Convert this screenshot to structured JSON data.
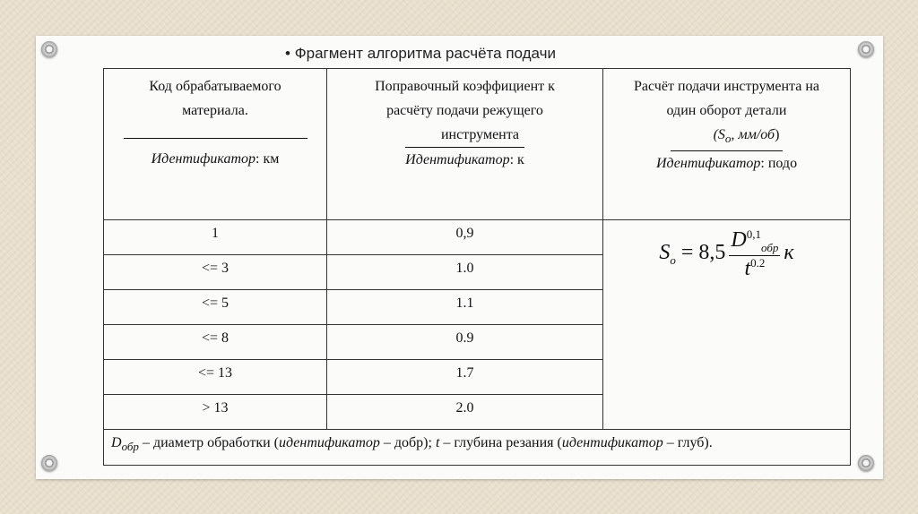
{
  "title": "Фрагмент алгоритма расчёта подачи",
  "headers": [
    {
      "lines": [
        "Код обрабатываемого",
        "материала."
      ],
      "underline": "",
      "id_label": "Идентификатор",
      "id_value": ": км"
    },
    {
      "lines": [
        "Поправочный коэффициент к",
        "расчёту подачи режущего"
      ],
      "underline": "инструмента",
      "id_label": "Идентификатор",
      "id_value": ": к"
    },
    {
      "lines": [
        "Расчёт подачи инструмента на",
        "один оборот детали"
      ],
      "underline": "(So, мм/об)",
      "id_label": "Идентификатор",
      "id_value": ": подо"
    }
  ],
  "rows": [
    {
      "code": "1",
      "coef": "0,9"
    },
    {
      "code": "<= 3",
      "coef": "1.0"
    },
    {
      "code": "<= 5",
      "coef": "1.1"
    },
    {
      "code": "<= 8",
      "coef": "0.9"
    },
    {
      "code": "<= 13",
      "coef": "1.7"
    },
    {
      "code": "> 13",
      "coef": "2.0"
    }
  ],
  "formula": {
    "lhs": "S",
    "lhs_sub": "o",
    "eq": "= 8,5",
    "num": "D",
    "num_sup": "0,1",
    "num_sub": "обр",
    "den": "t",
    "den_sup": "0.2",
    "factor": "к"
  },
  "footnote": {
    "d": "D",
    "d_sub": "обр",
    "t1": " – диаметр обработки (",
    "i1": "идентификатор",
    "t2": " – добр); ",
    "t": "t",
    "t3": " – глубина резания (",
    "i2": "идентификатор",
    "t4": " – глуб)."
  }
}
